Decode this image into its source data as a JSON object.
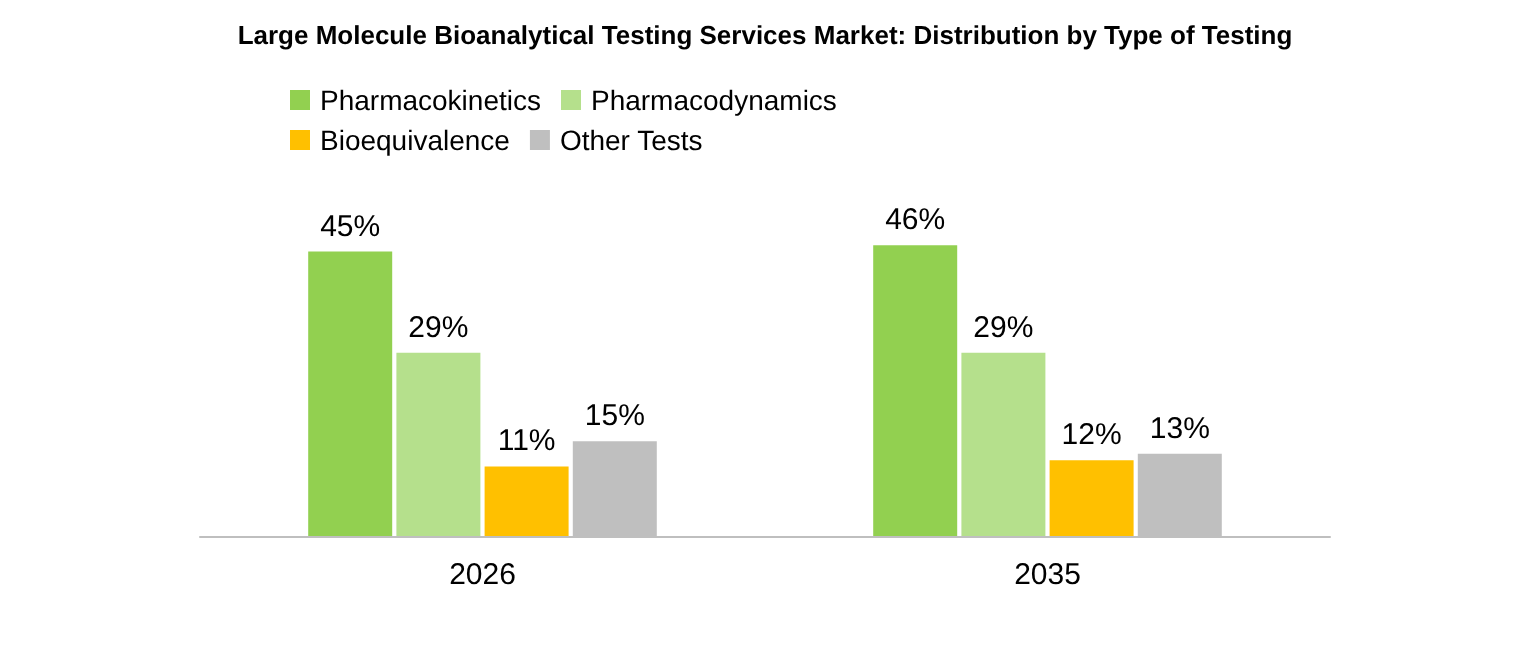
{
  "chart_data": {
    "type": "bar",
    "title": "Large Molecule Bioanalytical Testing Services Market: Distribution by Type of Testing",
    "categories": [
      "2026",
      "2035"
    ],
    "series": [
      {
        "name": "Pharmacokinetics",
        "color": "#92d050",
        "values": [
          45,
          46
        ],
        "value_labels": [
          "45%",
          "46%"
        ]
      },
      {
        "name": "Pharmacodynamics",
        "color": "#b5e08c",
        "values": [
          29,
          29
        ],
        "value_labels": [
          "29%",
          "29%"
        ]
      },
      {
        "name": "Bioequivalence",
        "color": "#ffc000",
        "values": [
          11,
          12
        ],
        "value_labels": [
          "11%",
          "12%"
        ]
      },
      {
        "name": "Other Tests",
        "color": "#bfbfbf",
        "values": [
          15,
          13
        ],
        "value_labels": [
          "15%",
          "13%"
        ]
      }
    ],
    "legend": "top left"
  }
}
